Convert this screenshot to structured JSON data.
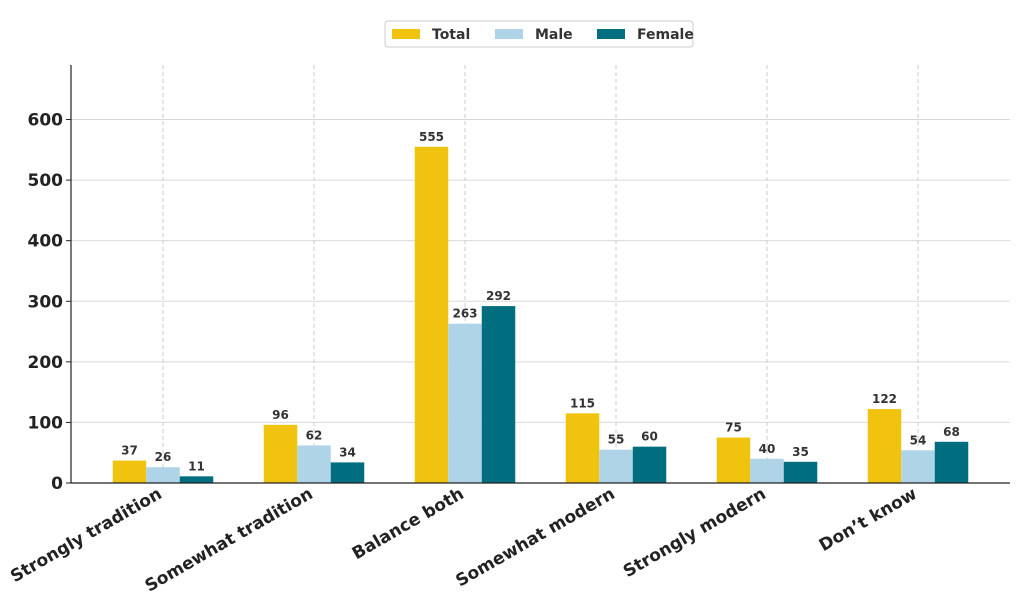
{
  "chart_data": {
    "type": "bar",
    "title": "",
    "xlabel": "",
    "ylabel": "",
    "categories": [
      "Strongly tradition",
      "Somewhat tradition",
      "Balance both",
      "Somewhat modern",
      "Strongly modern",
      "Don’t know"
    ],
    "series": [
      {
        "name": "Total",
        "color": "#f0c30f",
        "values": [
          37,
          96,
          555,
          115,
          75,
          122
        ]
      },
      {
        "name": "Male",
        "color": "#afd4e8",
        "values": [
          26,
          62,
          263,
          55,
          40,
          54
        ]
      },
      {
        "name": "Female",
        "color": "#006e7f",
        "values": [
          11,
          34,
          292,
          60,
          35,
          68
        ]
      }
    ],
    "ylim": [
      0,
      690
    ],
    "yticks": [
      0,
      100,
      200,
      300,
      400,
      500,
      600
    ],
    "grid": true,
    "legend_position": "top-center"
  }
}
